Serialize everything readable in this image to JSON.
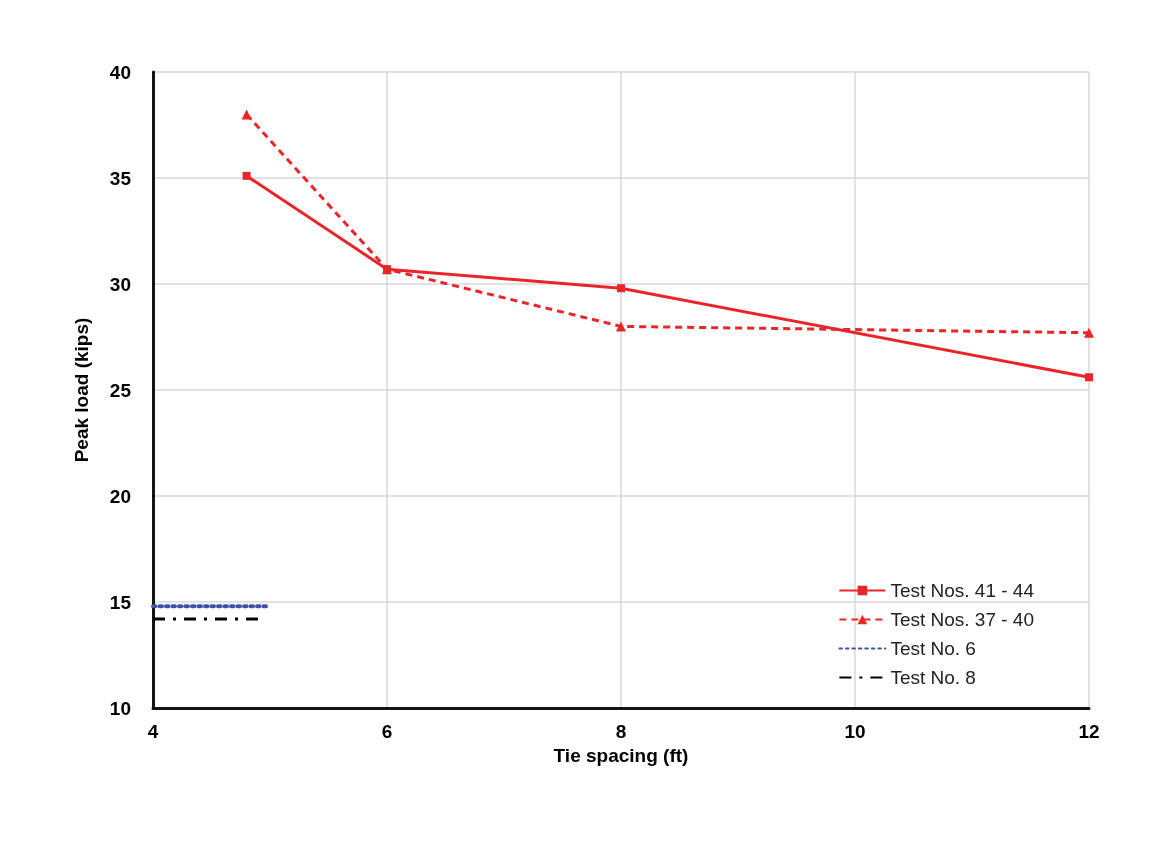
{
  "chart_data": {
    "type": "line",
    "xlabel": "Tie spacing (ft)",
    "ylabel": "Peak load (kips)",
    "xlim": [
      4,
      12
    ],
    "xticks": [
      4,
      6,
      8,
      10,
      12
    ],
    "ylim": [
      10,
      40
    ],
    "yticks": [
      10,
      15,
      20,
      25,
      30,
      35,
      40
    ],
    "grid": true,
    "legend": "bottom right",
    "series": [
      {
        "name": "Test Nos. 41 - 44",
        "color": "#e8262a",
        "x": [
          4.8,
          6,
          8,
          12
        ],
        "values": [
          35.1,
          30.7,
          29.8,
          25.6
        ],
        "marker": "square",
        "line_style": "solid"
      },
      {
        "name": "Test Nos. 37 - 40",
        "color": "#e8262a",
        "x": [
          4.8,
          6,
          8,
          12
        ],
        "values": [
          38.0,
          30.7,
          28.0,
          27.7
        ],
        "marker": "triangle",
        "line_style": "dashed"
      },
      {
        "name": "Test No. 6",
        "color": "#3f51a8",
        "x": [
          4,
          5
        ],
        "values": [
          14.8,
          14.8
        ],
        "marker": "none",
        "line_style": "dotted"
      },
      {
        "name": "Test No. 8",
        "color": "#000000",
        "x": [
          4,
          4.9
        ],
        "values": [
          14.2,
          14.2
        ],
        "marker": "none",
        "line_style": "dashdot"
      }
    ]
  }
}
